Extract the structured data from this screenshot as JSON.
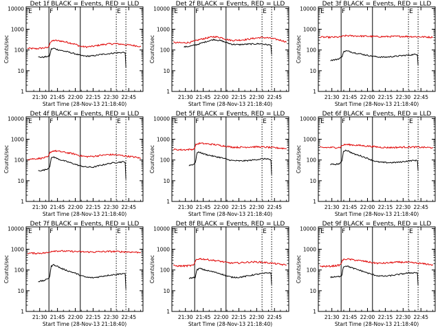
{
  "chart_data": {
    "type": "line",
    "layout": "3x3 grid",
    "x_ticks": [
      "21:30",
      "21:45",
      "22:00",
      "22:15",
      "22:30",
      "22:45"
    ],
    "x_tick_minutes": [
      21.5,
      21.75,
      22.0,
      22.25,
      22.5,
      22.75
    ],
    "x_range_hours": [
      21.31,
      22.95
    ],
    "xlabel": "Start Time (28-Nov-13 21:18:40)",
    "ylabel": "Counts/sec",
    "y_scale": "log",
    "y_ticks": [
      "1",
      "10",
      "100",
      "1000",
      "10000"
    ],
    "ylim": [
      1,
      12000
    ],
    "series_colors": {
      "events": "#000000",
      "lld": "#e00000"
    },
    "markers": {
      "E1": "E",
      "F": "F",
      "E2": "E"
    },
    "marker_positions_hours": {
      "E1": 21.33,
      "F": 21.63,
      "E2": 22.575
    },
    "vertical_lines_hours": {
      "solid": [
        21.63,
        22.07
      ],
      "dotted": [
        22.575,
        22.71
      ]
    },
    "panels": [
      {
        "title": "Det 1f BLACK = Events, RED = LLD",
        "events": {
          "x": [
            21.48,
            21.55,
            21.6,
            21.64,
            21.66,
            21.7,
            21.75,
            21.8,
            21.9,
            22.0,
            22.07,
            22.15,
            22.25,
            22.35,
            22.45,
            22.55,
            22.65,
            22.7,
            22.71
          ],
          "y": [
            45,
            45,
            48,
            50,
            110,
            120,
            105,
            95,
            80,
            65,
            55,
            50,
            52,
            60,
            65,
            72,
            75,
            78,
            15
          ]
        },
        "lld": {
          "x": [
            21.33,
            21.45,
            21.55,
            21.62,
            21.65,
            21.7,
            21.8,
            21.9,
            22.0,
            22.07,
            22.15,
            22.25,
            22.35,
            22.45,
            22.55,
            22.65,
            22.75,
            22.85,
            22.92
          ],
          "y": [
            120,
            115,
            125,
            130,
            240,
            290,
            270,
            230,
            190,
            150,
            140,
            150,
            175,
            195,
            200,
            190,
            175,
            160,
            150
          ]
        }
      },
      {
        "title": "Det 2f BLACK = Events, RED = LLD",
        "events": {
          "x": [
            21.48,
            21.55,
            21.63,
            21.7,
            21.8,
            21.9,
            22.0,
            22.07,
            22.15,
            22.25,
            22.35,
            22.45,
            22.55,
            22.65,
            22.7,
            22.71
          ],
          "y": [
            140,
            150,
            170,
            200,
            260,
            320,
            280,
            230,
            190,
            180,
            190,
            195,
            200,
            180,
            170,
            60
          ]
        },
        "lld": {
          "x": [
            21.33,
            21.45,
            21.55,
            21.62,
            21.7,
            21.8,
            21.9,
            22.0,
            22.07,
            22.15,
            22.25,
            22.35,
            22.45,
            22.55,
            22.65,
            22.75,
            22.85,
            22.92
          ],
          "y": [
            230,
            220,
            230,
            260,
            320,
            380,
            440,
            400,
            330,
            290,
            300,
            320,
            360,
            400,
            390,
            340,
            290,
            240
          ]
        }
      },
      {
        "title": "Det 3f BLACK = Events, RED = LLD",
        "events": {
          "x": [
            21.48,
            21.55,
            21.6,
            21.64,
            21.66,
            21.7,
            21.75,
            21.8,
            21.9,
            22.0,
            22.07,
            22.15,
            22.25,
            22.35,
            22.45,
            22.55,
            22.65,
            22.7,
            22.71
          ],
          "y": [
            32,
            34,
            38,
            45,
            80,
            90,
            85,
            75,
            65,
            55,
            50,
            46,
            45,
            48,
            52,
            56,
            60,
            62,
            18
          ]
        },
        "lld": {
          "x": [
            21.33,
            21.45,
            21.55,
            21.62,
            21.65,
            21.7,
            21.8,
            21.9,
            22.0,
            22.07,
            22.15,
            22.25,
            22.35,
            22.45,
            22.55,
            22.65,
            22.75,
            22.85,
            22.92
          ],
          "y": [
            420,
            410,
            415,
            420,
            460,
            490,
            480,
            470,
            460,
            450,
            440,
            440,
            450,
            455,
            450,
            440,
            430,
            420,
            410
          ]
        }
      },
      {
        "title": "Det 4f BLACK = Events, RED = LLD",
        "events": {
          "x": [
            21.48,
            21.55,
            21.6,
            21.64,
            21.66,
            21.7,
            21.75,
            21.8,
            21.9,
            22.0,
            22.07,
            22.15,
            22.25,
            22.35,
            22.45,
            22.55,
            22.65,
            22.7,
            22.71
          ],
          "y": [
            30,
            32,
            36,
            45,
            120,
            140,
            115,
            100,
            80,
            62,
            52,
            46,
            45,
            55,
            65,
            75,
            80,
            82,
            12
          ]
        },
        "lld": {
          "x": [
            21.33,
            21.45,
            21.55,
            21.62,
            21.65,
            21.7,
            21.8,
            21.9,
            22.0,
            22.07,
            22.15,
            22.25,
            22.35,
            22.45,
            22.55,
            22.65,
            22.75,
            22.85,
            22.92
          ],
          "y": [
            110,
            115,
            125,
            140,
            240,
            280,
            250,
            220,
            190,
            160,
            145,
            150,
            165,
            180,
            180,
            165,
            150,
            135,
            120
          ]
        }
      },
      {
        "title": "Det 5f BLACK = Events, RED = LLD",
        "events": {
          "x": [
            21.55,
            21.6,
            21.64,
            21.66,
            21.7,
            21.75,
            21.8,
            21.9,
            22.0,
            22.07,
            22.15,
            22.25,
            22.35,
            22.45,
            22.55,
            22.65,
            22.7,
            22.71
          ],
          "y": [
            55,
            60,
            70,
            220,
            240,
            200,
            180,
            150,
            130,
            110,
            95,
            90,
            92,
            100,
            110,
            115,
            100,
            20
          ]
        },
        "lld": {
          "x": [
            21.33,
            21.45,
            21.55,
            21.62,
            21.65,
            21.7,
            21.8,
            21.9,
            22.0,
            22.07,
            22.15,
            22.25,
            22.35,
            22.45,
            22.55,
            22.65,
            22.75,
            22.85,
            22.92
          ],
          "y": [
            320,
            310,
            320,
            330,
            560,
            640,
            600,
            560,
            500,
            460,
            420,
            410,
            420,
            430,
            430,
            410,
            390,
            370,
            350
          ]
        }
      },
      {
        "title": "Det 6f BLACK = Events, RED = LLD",
        "events": {
          "x": [
            21.48,
            21.55,
            21.6,
            21.64,
            21.66,
            21.7,
            21.75,
            21.8,
            21.9,
            22.0,
            22.07,
            22.15,
            22.25,
            22.35,
            22.45,
            22.55,
            22.65,
            22.7,
            22.71
          ],
          "y": [
            60,
            62,
            65,
            80,
            260,
            300,
            250,
            200,
            160,
            120,
            95,
            80,
            75,
            75,
            78,
            88,
            95,
            95,
            30
          ]
        },
        "lld": {
          "x": [
            21.33,
            21.45,
            21.55,
            21.62,
            21.65,
            21.7,
            21.8,
            21.9,
            22.0,
            22.07,
            22.15,
            22.25,
            22.35,
            22.45,
            22.55,
            22.65,
            22.75,
            22.85,
            22.92
          ],
          "y": [
            400,
            400,
            400,
            410,
            520,
            560,
            530,
            500,
            470,
            450,
            420,
            400,
            400,
            410,
            420,
            420,
            410,
            400,
            390
          ]
        }
      },
      {
        "title": "Det 7f BLACK = Events, RED = LLD",
        "events": {
          "x": [
            21.48,
            21.55,
            21.6,
            21.64,
            21.66,
            21.7,
            21.75,
            21.8,
            21.9,
            22.0,
            22.07,
            22.15,
            22.25,
            22.35,
            22.45,
            22.55,
            22.65,
            22.7,
            22.71
          ],
          "y": [
            28,
            30,
            35,
            45,
            150,
            180,
            150,
            120,
            90,
            70,
            55,
            45,
            42,
            48,
            55,
            60,
            66,
            70,
            12
          ]
        },
        "lld": {
          "x": [
            21.33,
            21.45,
            21.55,
            21.62,
            21.65,
            21.7,
            21.8,
            21.9,
            22.0,
            22.07,
            22.15,
            22.25,
            22.35,
            22.45,
            22.55,
            22.65,
            22.75,
            22.85,
            22.92
          ],
          "y": [
            650,
            640,
            660,
            680,
            780,
            840,
            820,
            800,
            780,
            760,
            740,
            740,
            760,
            780,
            780,
            760,
            740,
            720,
            700
          ]
        }
      },
      {
        "title": "Det 8f BLACK = Events, RED = LLD",
        "events": {
          "x": [
            21.55,
            21.6,
            21.64,
            21.66,
            21.7,
            21.75,
            21.8,
            21.9,
            22.0,
            22.07,
            22.15,
            22.25,
            22.35,
            22.45,
            22.55,
            22.65,
            22.7,
            22.71
          ],
          "y": [
            40,
            42,
            45,
            100,
            120,
            105,
            95,
            80,
            65,
            52,
            45,
            44,
            50,
            58,
            65,
            72,
            75,
            20
          ]
        },
        "lld": {
          "x": [
            21.33,
            21.45,
            21.55,
            21.62,
            21.65,
            21.7,
            21.8,
            21.9,
            22.0,
            22.07,
            22.15,
            22.25,
            22.35,
            22.45,
            22.55,
            22.65,
            22.75,
            22.85,
            22.92
          ],
          "y": [
            160,
            155,
            160,
            170,
            320,
            350,
            320,
            290,
            260,
            230,
            215,
            220,
            235,
            245,
            240,
            225,
            205,
            185,
            170
          ]
        }
      },
      {
        "title": "Det 9f BLACK = Events, RED = LLD",
        "events": {
          "x": [
            21.48,
            21.55,
            21.6,
            21.64,
            21.66,
            21.7,
            21.75,
            21.8,
            21.9,
            22.0,
            22.07,
            22.15,
            22.25,
            22.35,
            22.45,
            22.55,
            22.65,
            22.7,
            22.71
          ],
          "y": [
            45,
            46,
            48,
            55,
            140,
            160,
            140,
            120,
            95,
            72,
            60,
            52,
            50,
            55,
            62,
            70,
            74,
            75,
            18
          ]
        },
        "lld": {
          "x": [
            21.33,
            21.45,
            21.55,
            21.62,
            21.65,
            21.7,
            21.8,
            21.9,
            22.0,
            22.07,
            22.15,
            22.25,
            22.35,
            22.45,
            22.55,
            22.65,
            22.75,
            22.85,
            22.92
          ],
          "y": [
            150,
            150,
            160,
            175,
            300,
            340,
            310,
            280,
            250,
            225,
            210,
            215,
            230,
            240,
            235,
            220,
            205,
            190,
            175
          ]
        }
      }
    ]
  }
}
